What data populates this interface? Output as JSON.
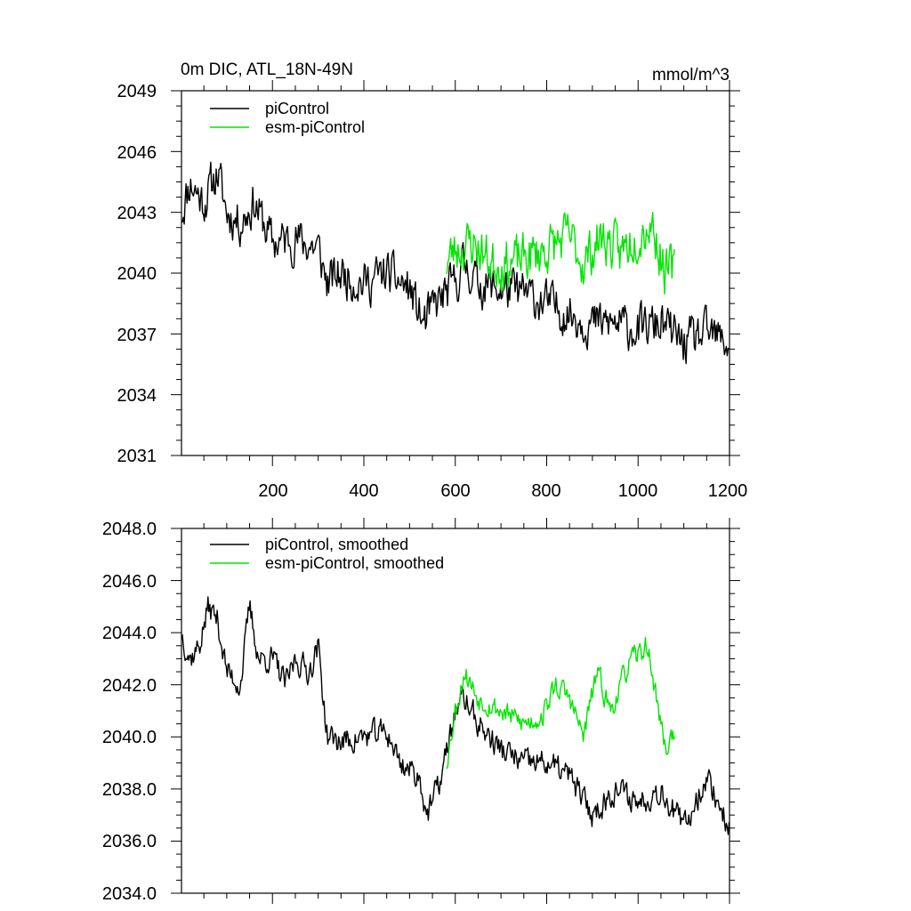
{
  "chart_data": [
    {
      "type": "line",
      "title": "0m DIC, ATL_18N-49N",
      "units": "mmol/m^3",
      "xlim": [
        1,
        1200
      ],
      "ylim": [
        2031,
        2049
      ],
      "x_ticks": [
        200,
        400,
        600,
        800,
        1000,
        1200
      ],
      "y_ticks": [
        2031,
        2034,
        2037,
        2040,
        2043,
        2046,
        2049
      ],
      "y_tick_labels": [
        "2031",
        "2034",
        "2037",
        "2040",
        "2043",
        "2046",
        "2049"
      ],
      "x_tick_labels": [
        "200",
        "400",
        "600",
        "800",
        "1000",
        "1200"
      ],
      "legend_position": "top-left",
      "series": [
        {
          "name": "piControl",
          "color": "#000000",
          "x_range": [
            1,
            1200
          ],
          "anchors": [
            [
              1,
              2043
            ],
            [
              20,
              2044.5
            ],
            [
              50,
              2043.5
            ],
            [
              80,
              2045
            ],
            [
              100,
              2043
            ],
            [
              130,
              2042.5
            ],
            [
              160,
              2043.5
            ],
            [
              200,
              2041.5
            ],
            [
              250,
              2041.7
            ],
            [
              300,
              2041.2
            ],
            [
              320,
              2039.5
            ],
            [
              350,
              2040
            ],
            [
              400,
              2039.5
            ],
            [
              450,
              2040
            ],
            [
              500,
              2039.2
            ],
            [
              530,
              2037.5
            ],
            [
              560,
              2038.5
            ],
            [
              600,
              2039.5
            ],
            [
              620,
              2040.5
            ],
            [
              650,
              2039.5
            ],
            [
              700,
              2039.2
            ],
            [
              750,
              2039
            ],
            [
              800,
              2038.5
            ],
            [
              850,
              2038
            ],
            [
              900,
              2037.5
            ],
            [
              950,
              2037.5
            ],
            [
              1000,
              2037.2
            ],
            [
              1050,
              2037.5
            ],
            [
              1100,
              2036.5
            ],
            [
              1150,
              2037
            ],
            [
              1200,
              2036.5
            ]
          ],
          "amplitude": 1.7,
          "seed": 11
        },
        {
          "name": "esm-piControl",
          "color": "#00e600",
          "x_range": [
            580,
            1080
          ],
          "anchors": [
            [
              580,
              2040.5
            ],
            [
              600,
              2041.2
            ],
            [
              640,
              2041.5
            ],
            [
              680,
              2040.5
            ],
            [
              720,
              2040.5
            ],
            [
              760,
              2040.8
            ],
            [
              800,
              2041.2
            ],
            [
              850,
              2041.8
            ],
            [
              880,
              2040.5
            ],
            [
              920,
              2041.8
            ],
            [
              960,
              2041
            ],
            [
              1000,
              2042
            ],
            [
              1030,
              2042.5
            ],
            [
              1060,
              2040
            ],
            [
              1080,
              2040.2
            ]
          ],
          "amplitude": 1.9,
          "seed": 23
        }
      ]
    },
    {
      "type": "line",
      "title": "",
      "xlim": [
        1,
        1200
      ],
      "ylim": [
        2034,
        2048
      ],
      "x_ticks": [
        200,
        400,
        600,
        800,
        1000,
        1200
      ],
      "y_ticks": [
        2034,
        2036,
        2038,
        2040,
        2042,
        2044,
        2046,
        2048
      ],
      "y_tick_labels": [
        "2034.0",
        "2036.0",
        "2038.0",
        "2040.0",
        "2042.0",
        "2044.0",
        "2046.0",
        "2048.0"
      ],
      "legend_position": "top-left",
      "series": [
        {
          "name": "piControl, smoothed",
          "color": "#000000",
          "x_range": [
            1,
            1200
          ],
          "anchors": [
            [
              1,
              2044
            ],
            [
              20,
              2043
            ],
            [
              40,
              2043.5
            ],
            [
              60,
              2045
            ],
            [
              80,
              2044.5
            ],
            [
              100,
              2042.5
            ],
            [
              130,
              2042
            ],
            [
              150,
              2045
            ],
            [
              170,
              2043
            ],
            [
              200,
              2043
            ],
            [
              230,
              2042
            ],
            [
              250,
              2043
            ],
            [
              280,
              2042.5
            ],
            [
              300,
              2043.5
            ],
            [
              320,
              2040
            ],
            [
              350,
              2039.8
            ],
            [
              400,
              2040
            ],
            [
              450,
              2040.2
            ],
            [
              480,
              2039
            ],
            [
              520,
              2038.5
            ],
            [
              540,
              2037
            ],
            [
              570,
              2038.5
            ],
            [
              600,
              2041
            ],
            [
              620,
              2041.5
            ],
            [
              650,
              2040.5
            ],
            [
              700,
              2039.5
            ],
            [
              750,
              2039
            ],
            [
              800,
              2039
            ],
            [
              850,
              2038.5
            ],
            [
              900,
              2037
            ],
            [
              950,
              2038
            ],
            [
              1000,
              2037.5
            ],
            [
              1050,
              2038
            ],
            [
              1100,
              2036.5
            ],
            [
              1150,
              2038.5
            ],
            [
              1200,
              2036.5
            ]
          ],
          "amplitude": 0.8,
          "seed": 37
        },
        {
          "name": "esm-piControl, smoothed",
          "color": "#00e600",
          "x_range": [
            580,
            1080
          ],
          "anchors": [
            [
              580,
              2039
            ],
            [
              600,
              2041
            ],
            [
              620,
              2042.5
            ],
            [
              650,
              2041.5
            ],
            [
              700,
              2041
            ],
            [
              750,
              2040.5
            ],
            [
              790,
              2040.8
            ],
            [
              820,
              2042
            ],
            [
              850,
              2041.5
            ],
            [
              880,
              2040
            ],
            [
              910,
              2042.5
            ],
            [
              940,
              2041
            ],
            [
              980,
              2042.8
            ],
            [
              1020,
              2043.5
            ],
            [
              1040,
              2041.5
            ],
            [
              1060,
              2039.5
            ],
            [
              1080,
              2040.3
            ]
          ],
          "amplitude": 0.7,
          "seed": 53
        }
      ]
    }
  ]
}
